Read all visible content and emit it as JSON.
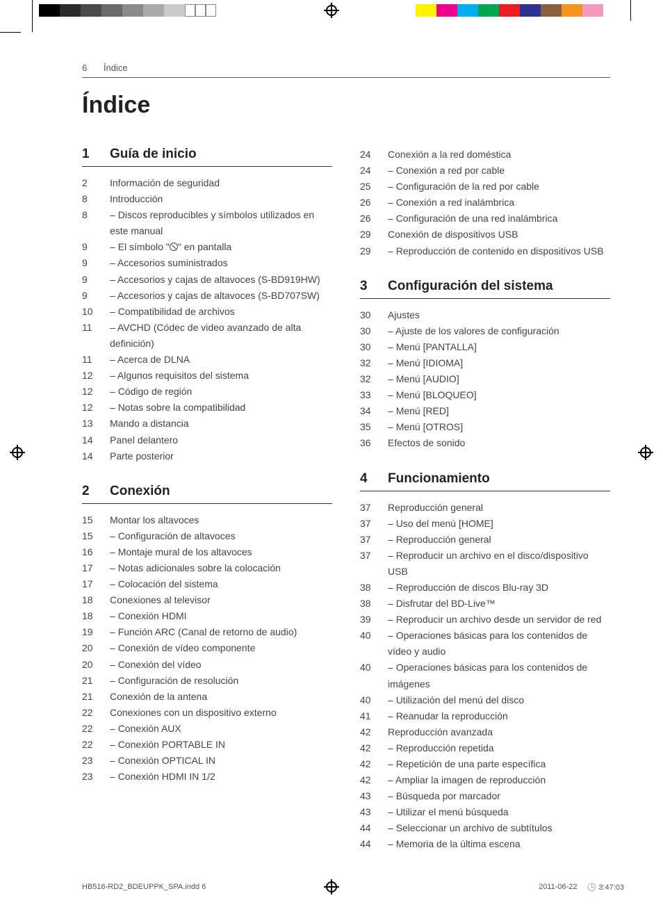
{
  "printer_bars": {
    "left_colors": [
      "#000000",
      "#2b2b2b",
      "#4a4a4a",
      "#6a6a6a",
      "#8a8a8a",
      "#aaaaaa",
      "#cacaca",
      "#ffffff",
      "#ffffff",
      "#ffffff"
    ],
    "right_colors": [
      "#fff200",
      "#ec008c",
      "#00aeef",
      "#00a651",
      "#ed1c24",
      "#2e3192",
      "#8b5e3c",
      "#f7941d",
      "#f49ac1",
      "#ffffff"
    ]
  },
  "running_head": {
    "page": "6",
    "label": "Índice"
  },
  "title": "Índice",
  "sections": [
    {
      "num": "1",
      "title": "Guía de inicio",
      "entries": [
        {
          "pg": "2",
          "txt": "Información de seguridad",
          "sub": false
        },
        {
          "pg": "8",
          "txt": "Introducción",
          "sub": false
        },
        {
          "pg": "8",
          "txt": "Discos reproducibles y símbolos utilizados en este manual",
          "sub": true
        },
        {
          "pg": "9",
          "txt": "El símbolo \"⦸\" en pantalla",
          "sub": true,
          "nosym": true
        },
        {
          "pg": "9",
          "txt": "Accesorios suministrados",
          "sub": true
        },
        {
          "pg": "9",
          "txt": "Accesorios y cajas de altavoces (S-BD919HW)",
          "sub": true
        },
        {
          "pg": "9",
          "txt": "Accesorios y cajas de altavoces (S-BD707SW)",
          "sub": true
        },
        {
          "pg": "10",
          "txt": "Compatibilidad de archivos",
          "sub": true
        },
        {
          "pg": "11",
          "txt": "AVCHD (Códec de video avanzado de alta definición)",
          "sub": true
        },
        {
          "pg": "11",
          "txt": "Acerca de DLNA",
          "sub": true
        },
        {
          "pg": "12",
          "txt": "Algunos requisitos del sistema",
          "sub": true
        },
        {
          "pg": "12",
          "txt": "Código de región",
          "sub": true
        },
        {
          "pg": "12",
          "txt": "Notas sobre la compatibilidad",
          "sub": true
        },
        {
          "pg": "13",
          "txt": "Mando a distancia",
          "sub": false
        },
        {
          "pg": "14",
          "txt": "Panel delantero",
          "sub": false
        },
        {
          "pg": "14",
          "txt": "Parte posterior",
          "sub": false
        }
      ]
    },
    {
      "num": "2",
      "title": "Conexión",
      "entries": [
        {
          "pg": "15",
          "txt": "Montar los altavoces",
          "sub": false
        },
        {
          "pg": "15",
          "txt": "Configuración de altavoces",
          "sub": true
        },
        {
          "pg": "16",
          "txt": "Montaje mural de los altavoces",
          "sub": true
        },
        {
          "pg": "17",
          "txt": "Notas adicionales sobre la colocación",
          "sub": true
        },
        {
          "pg": "17",
          "txt": "Colocación del sistema",
          "sub": true
        },
        {
          "pg": "18",
          "txt": "Conexiones al televisor",
          "sub": false
        },
        {
          "pg": "18",
          "txt": "Conexión HDMI",
          "sub": true
        },
        {
          "pg": "19",
          "txt": "Función ARC (Canal de retorno de audio)",
          "sub": true
        },
        {
          "pg": "20",
          "txt": "Conexión de vídeo componente",
          "sub": true
        },
        {
          "pg": "20",
          "txt": "Conexión del vídeo",
          "sub": true
        },
        {
          "pg": "21",
          "txt": "Configuración de resolución",
          "sub": true
        },
        {
          "pg": "21",
          "txt": "Conexión de la antena",
          "sub": false
        },
        {
          "pg": "22",
          "txt": "Conexiones con un dispositivo externo",
          "sub": false
        },
        {
          "pg": "22",
          "txt": "Conexión AUX",
          "sub": true
        },
        {
          "pg": "22",
          "txt": "Conexión PORTABLE IN",
          "sub": true
        },
        {
          "pg": "23",
          "txt": "Conexión OPTICAL IN",
          "sub": true
        },
        {
          "pg": "23",
          "txt": "Conexión HDMI IN 1/2",
          "sub": true
        }
      ]
    },
    {
      "num": "",
      "title": "",
      "continuation": true,
      "entries": [
        {
          "pg": "24",
          "txt": "Conexión a la red doméstica",
          "sub": false
        },
        {
          "pg": "24",
          "txt": "Conexión a red por cable",
          "sub": true
        },
        {
          "pg": "25",
          "txt": "Configuración de la red por cable",
          "sub": true
        },
        {
          "pg": "26",
          "txt": "Conexión a red inalámbrica",
          "sub": true
        },
        {
          "pg": "26",
          "txt": "Configuración de una red inalámbrica",
          "sub": true
        },
        {
          "pg": "29",
          "txt": "Conexión de dispositivos USB",
          "sub": false
        },
        {
          "pg": "29",
          "txt": "Reproducción de contenido en dispositivos USB",
          "sub": true
        }
      ]
    },
    {
      "num": "3",
      "title": "Configuración del sistema",
      "entries": [
        {
          "pg": "30",
          "txt": "Ajustes",
          "sub": false
        },
        {
          "pg": "30",
          "txt": "Ajuste de los valores de configuración",
          "sub": true
        },
        {
          "pg": "30",
          "txt": "Menú [PANTALLA]",
          "sub": true
        },
        {
          "pg": "32",
          "txt": "Menú [IDIOMA]",
          "sub": true
        },
        {
          "pg": "32",
          "txt": "Menú [AUDIO]",
          "sub": true
        },
        {
          "pg": "33",
          "txt": "Menú [BLOQUEO]",
          "sub": true
        },
        {
          "pg": "34",
          "txt": "Menú [RED]",
          "sub": true
        },
        {
          "pg": "35",
          "txt": "Menú [OTROS]",
          "sub": true
        },
        {
          "pg": "36",
          "txt": "Efectos de sonido",
          "sub": false
        }
      ]
    },
    {
      "num": "4",
      "title": "Funcionamiento",
      "entries": [
        {
          "pg": "37",
          "txt": "Reproducción general",
          "sub": false
        },
        {
          "pg": "37",
          "txt": "Uso del menú [HOME]",
          "sub": true
        },
        {
          "pg": "37",
          "txt": "Reproducción general",
          "sub": true
        },
        {
          "pg": "37",
          "txt": "Reproducir un archivo en el disco/dispositivo USB",
          "sub": true
        },
        {
          "pg": "38",
          "txt": "Reproducción de discos Blu-ray 3D",
          "sub": true
        },
        {
          "pg": "38",
          "txt": "Disfrutar del BD-Live™",
          "sub": true
        },
        {
          "pg": "39",
          "txt": "Reproducir un archivo desde un servidor de red",
          "sub": true
        },
        {
          "pg": "40",
          "txt": "Operaciones básicas para los contenidos de vídeo y audio",
          "sub": true
        },
        {
          "pg": "40",
          "txt": "Operaciones básicas para los contenidos de imágenes",
          "sub": true
        },
        {
          "pg": "40",
          "txt": "Utilización del menú del disco",
          "sub": true
        },
        {
          "pg": "41",
          "txt": "Reanudar la reproducción",
          "sub": true
        },
        {
          "pg": "42",
          "txt": "Reproducción avanzada",
          "sub": false
        },
        {
          "pg": "42",
          "txt": "Reproducción repetida",
          "sub": true
        },
        {
          "pg": "42",
          "txt": "Repetición de una parte específica",
          "sub": true
        },
        {
          "pg": "42",
          "txt": "Ampliar la imagen de reproducción",
          "sub": true
        },
        {
          "pg": "43",
          "txt": "Búsqueda por marcador",
          "sub": true
        },
        {
          "pg": "43",
          "txt": "Utilizar el menú búsqueda",
          "sub": true
        },
        {
          "pg": "44",
          "txt": "Seleccionar un archivo de subtítulos",
          "sub": true
        },
        {
          "pg": "44",
          "txt": "Memoria de la última escena",
          "sub": true
        }
      ]
    }
  ],
  "footer": {
    "file": "HB516-RD2_BDEUPPK_SPA.indd   6",
    "date": "2011-06-22",
    "time": "🕒 3:47:03"
  },
  "colors": {
    "text": "#323232",
    "rule": "#555555",
    "background": "#ffffff"
  }
}
